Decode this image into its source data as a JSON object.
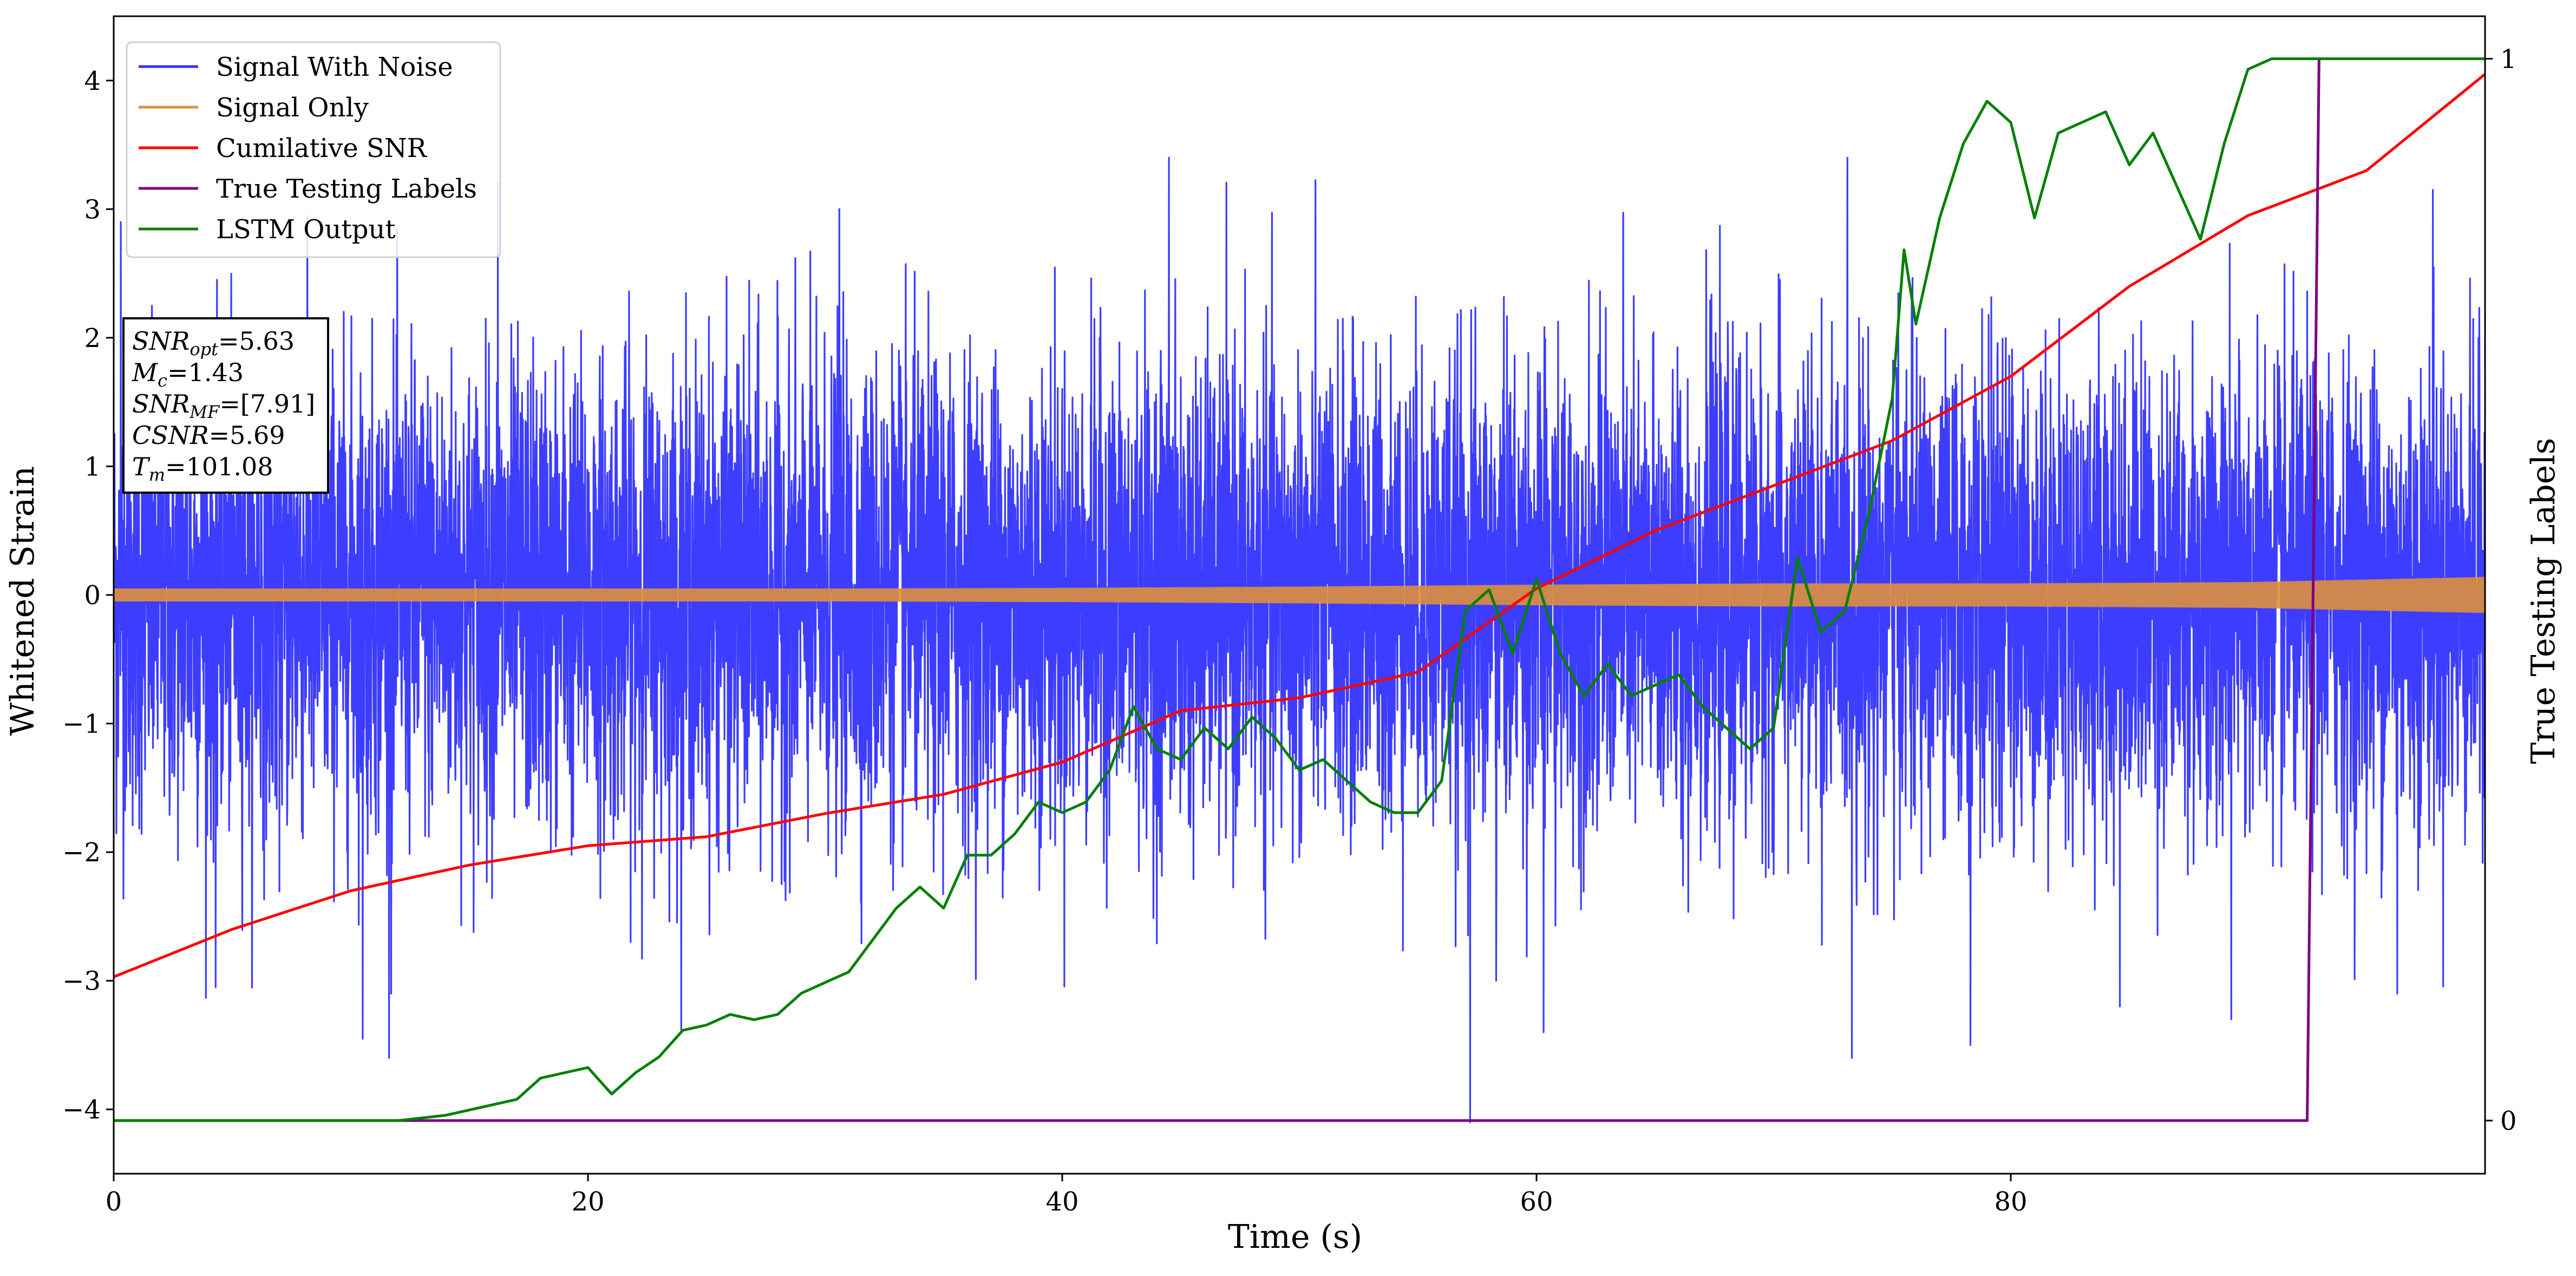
{
  "chart_data": {
    "type": "line",
    "title": "",
    "xlabel": "Time (s)",
    "ylabel": "Whitened Strain",
    "y2label": "True Testing Labels",
    "xlim": [
      0,
      100
    ],
    "ylim": [
      -4.5,
      4.5
    ],
    "y2lim": [
      -0.05,
      1.04
    ],
    "xticks": [
      0,
      20,
      40,
      60,
      80
    ],
    "yticks": [
      -4,
      -3,
      -2,
      -1,
      0,
      1,
      2,
      3,
      4
    ],
    "y2ticks": [
      0,
      1
    ],
    "grid": false,
    "legend_position": "top-left",
    "series": [
      {
        "name": "Signal With Noise",
        "color": "#3333ff",
        "axis": "left",
        "style": "dense-noise",
        "noise_sigma": 0.9,
        "range": [
          -3.6,
          3.4
        ],
        "spikes": [
          {
            "x": 0.3,
            "y": 2.9
          },
          {
            "x": 4.3,
            "y": -3.05
          },
          {
            "x": 10.5,
            "y": -3.45
          },
          {
            "x": 11.7,
            "y": -3.1
          },
          {
            "x": 16.2,
            "y": 3.2
          },
          {
            "x": 30.6,
            "y": 3.0
          },
          {
            "x": 44.5,
            "y": 3.4
          },
          {
            "x": 57.2,
            "y": -4.1
          },
          {
            "x": 58.3,
            "y": -3.0
          },
          {
            "x": 60.3,
            "y": -3.4
          },
          {
            "x": 73.3,
            "y": -3.6
          },
          {
            "x": 78.3,
            "y": -3.5
          },
          {
            "x": 84.6,
            "y": -3.2
          },
          {
            "x": 89.3,
            "y": -3.3
          },
          {
            "x": 96.3,
            "y": -3.1
          },
          {
            "x": 97.8,
            "y": 3.15
          }
        ]
      },
      {
        "name": "Signal Only",
        "color": "#dd8f3c",
        "axis": "left",
        "style": "envelope",
        "x": [
          0,
          10,
          20,
          30,
          40,
          50,
          60,
          70,
          80,
          90,
          95,
          100
        ],
        "amplitude": [
          0.05,
          0.05,
          0.05,
          0.05,
          0.055,
          0.065,
          0.08,
          0.09,
          0.09,
          0.1,
          0.12,
          0.14
        ]
      },
      {
        "name": "Cumilative SNR",
        "color": "#ff0000",
        "axis": "left",
        "x": [
          0,
          5,
          10,
          15,
          20,
          25,
          30,
          35,
          40,
          45,
          50,
          55,
          60,
          65,
          70,
          75,
          80,
          85,
          90,
          95,
          100
        ],
        "y": [
          -2.97,
          -2.6,
          -2.3,
          -2.1,
          -1.95,
          -1.88,
          -1.7,
          -1.55,
          -1.3,
          -0.9,
          -0.8,
          -0.6,
          0.05,
          0.5,
          0.85,
          1.2,
          1.7,
          2.4,
          2.95,
          3.3,
          4.05
        ]
      },
      {
        "name": "True Testing Labels",
        "color": "#800080",
        "axis": "right",
        "x": [
          0,
          92.5,
          93.0,
          100
        ],
        "y": [
          0,
          0,
          1,
          1
        ]
      },
      {
        "name": "LSTM Output",
        "color": "#008000",
        "axis": "right",
        "x": [
          0,
          12,
          14,
          16,
          17,
          18,
          19,
          20,
          21,
          22,
          23,
          24,
          25,
          26,
          27,
          28,
          29,
          30,
          31,
          32,
          33,
          34,
          35,
          36,
          37,
          38,
          39,
          40,
          41,
          42,
          43,
          44,
          45,
          46,
          47,
          48,
          49,
          50,
          51,
          52,
          53,
          54,
          55,
          56,
          57,
          58,
          59,
          60,
          61,
          62,
          63,
          64,
          65,
          66,
          67,
          68,
          69,
          70,
          71,
          72,
          73,
          74,
          75,
          75.5,
          76,
          77,
          78,
          79,
          80,
          81,
          82,
          83,
          84,
          85,
          86,
          87,
          88,
          89,
          90,
          91,
          92,
          95,
          100
        ],
        "y": [
          0,
          0,
          0.005,
          0.015,
          0.02,
          0.04,
          0.045,
          0.05,
          0.025,
          0.045,
          0.06,
          0.085,
          0.09,
          0.1,
          0.095,
          0.1,
          0.12,
          0.13,
          0.14,
          0.17,
          0.2,
          0.22,
          0.2,
          0.25,
          0.25,
          0.27,
          0.3,
          0.29,
          0.3,
          0.33,
          0.39,
          0.35,
          0.34,
          0.37,
          0.35,
          0.38,
          0.36,
          0.33,
          0.34,
          0.32,
          0.3,
          0.29,
          0.29,
          0.32,
          0.48,
          0.5,
          0.44,
          0.51,
          0.44,
          0.4,
          0.43,
          0.4,
          0.41,
          0.42,
          0.39,
          0.37,
          0.35,
          0.37,
          0.53,
          0.46,
          0.48,
          0.57,
          0.68,
          0.82,
          0.75,
          0.85,
          0.92,
          0.96,
          0.94,
          0.85,
          0.93,
          0.94,
          0.95,
          0.9,
          0.93,
          0.88,
          0.83,
          0.92,
          0.99,
          1.0,
          1.0,
          1.0,
          1.0
        ]
      }
    ],
    "annotation": {
      "lines": [
        {
          "sym": "SNR",
          "sub": "opt",
          "value": "=5.63"
        },
        {
          "sym": "M",
          "sub": "c",
          "value": "=1.43"
        },
        {
          "sym": "SNR",
          "sub": "MF",
          "value": "=[7.91]"
        },
        {
          "sym": "CSNR",
          "sub": "",
          "value": "=5.69"
        },
        {
          "sym": "T",
          "sub": "m",
          "value": "=101.08"
        }
      ]
    }
  }
}
